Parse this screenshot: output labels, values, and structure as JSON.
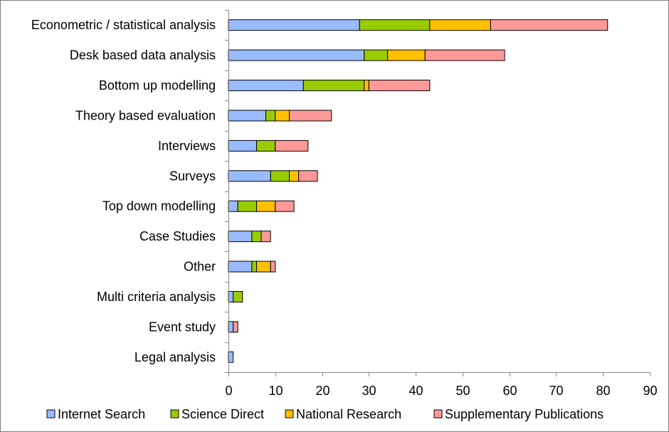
{
  "chart_data": {
    "type": "bar",
    "orientation": "horizontal",
    "stacked": true,
    "categories": [
      "Econometric / statistical analysis",
      "Desk based data analysis",
      "Bottom up modelling",
      "Theory based evaluation",
      "Interviews",
      "Surveys",
      "Top down modelling",
      "Case Studies",
      "Other",
      "Multi criteria analysis",
      "Event study",
      "Legal analysis"
    ],
    "series": [
      {
        "name": "Internet Search",
        "color": "#99bbff",
        "values": [
          28,
          29,
          16,
          8,
          6,
          9,
          2,
          5,
          5,
          1,
          1,
          1
        ]
      },
      {
        "name": "Science Direct",
        "color": "#99cc00",
        "values": [
          15,
          5,
          13,
          2,
          4,
          4,
          4,
          2,
          1,
          2,
          0,
          0
        ]
      },
      {
        "name": "National Research",
        "color": "#ffc000",
        "values": [
          13,
          8,
          1,
          3,
          0,
          2,
          4,
          0,
          3,
          0,
          0,
          0
        ]
      },
      {
        "name": "Supplementary Publications",
        "color": "#ff9999",
        "values": [
          25,
          17,
          13,
          9,
          7,
          4,
          4,
          2,
          1,
          0,
          1,
          0
        ]
      }
    ],
    "xlim": [
      0,
      90
    ],
    "xticks": [
      "0",
      "10",
      "20",
      "30",
      "40",
      "50",
      "60",
      "70",
      "80",
      "90"
    ],
    "grid": false,
    "legend": "bottom"
  }
}
